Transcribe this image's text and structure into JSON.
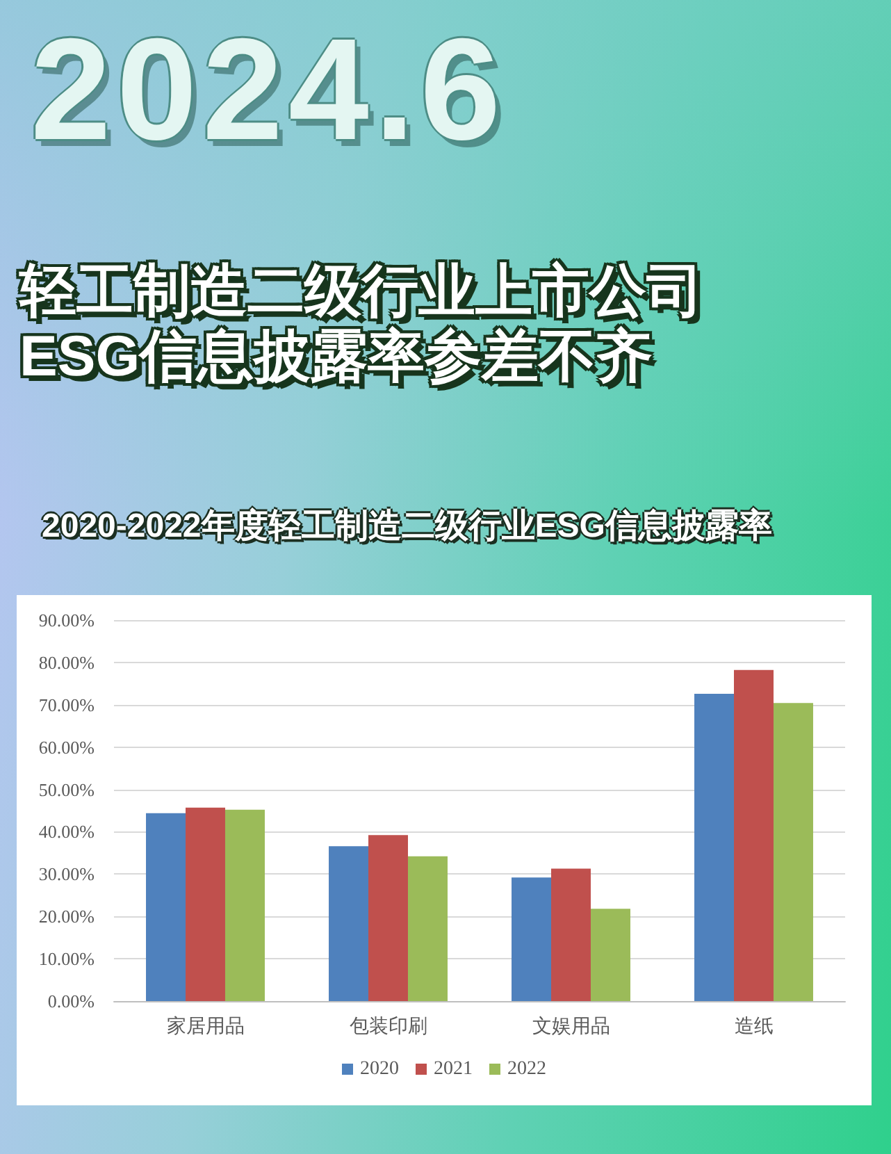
{
  "chart_data": {
    "type": "bar",
    "title": "轻工制造二级行业上市公司ESG信息披露率参差不齐",
    "subtitle": "2020-2022年度轻工制造二级行业ESG信息披露率",
    "annotations": [
      "2024.6"
    ],
    "categories": [
      "家居用品",
      "包装印刷",
      "文娱用品",
      "造纸"
    ],
    "series": [
      {
        "name": "2020",
        "color": "#4f81bd",
        "values": [
          44.4,
          36.6,
          29.2,
          72.6
        ]
      },
      {
        "name": "2021",
        "color": "#c0504d",
        "values": [
          45.7,
          39.2,
          31.3,
          78.2
        ]
      },
      {
        "name": "2022",
        "color": "#9bbb59",
        "values": [
          45.2,
          34.2,
          21.8,
          70.4
        ]
      }
    ],
    "ylim": [
      0,
      90
    ],
    "yticks": [
      {
        "value": 0,
        "label": "0.00%"
      },
      {
        "value": 10,
        "label": "10.00%"
      },
      {
        "value": 20,
        "label": "20.00%"
      },
      {
        "value": 30,
        "label": "30.00%"
      },
      {
        "value": 40,
        "label": "40.00%"
      },
      {
        "value": 50,
        "label": "50.00%"
      },
      {
        "value": 60,
        "label": "60.00%"
      },
      {
        "value": 70,
        "label": "70.00%"
      },
      {
        "value": 80,
        "label": "80.00%"
      },
      {
        "value": 90,
        "label": "90.00%"
      }
    ],
    "grid": "y",
    "legend": "bottom"
  }
}
